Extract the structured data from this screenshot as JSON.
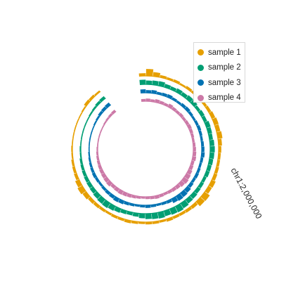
{
  "chart_data": {
    "type": "radial-track",
    "chromosome_label": "chr1:2,000,000",
    "tracks": [
      {
        "name": "sample 1",
        "color": "#E69F00",
        "values": [
          0.35,
          0.9,
          0.55,
          0.3,
          0.25,
          0.3,
          0.2,
          0.3,
          0.25,
          0.2,
          0.3,
          0.35,
          0.45,
          0.55,
          0.5,
          0.6,
          0.45,
          0.35,
          0.3,
          0.3,
          0.35,
          0.4,
          0.55,
          0.5,
          0.8,
          0.75,
          0.4,
          0.35,
          0.3,
          0.3,
          0.35,
          0.25,
          0.3,
          0.3,
          0.25,
          0.3,
          0.35,
          0.3,
          0.3,
          0.25,
          0.3,
          0.35,
          0.4,
          0.55,
          0.7,
          0.55,
          0.35,
          0.3,
          0.25,
          0.15,
          0.15,
          0.1,
          0.1,
          0.1,
          0.1,
          0.1,
          0.15,
          0.35,
          0.3,
          0.2
        ]
      },
      {
        "name": "sample 2",
        "color": "#009E73",
        "values": [
          0.6,
          0.5,
          0.55,
          0.6,
          0.45,
          0.4,
          0.5,
          0.45,
          0.55,
          0.5,
          0.35,
          0.45,
          0.4,
          0.55,
          0.5,
          0.45,
          0.55,
          0.6,
          0.55,
          0.5,
          0.45,
          0.45,
          0.35,
          0.4,
          0.45,
          0.55,
          0.6,
          0.75,
          0.85,
          0.8,
          0.7,
          0.8,
          0.75,
          0.7,
          0.6,
          0.45,
          0.4,
          0.45,
          0.55,
          0.65,
          0.75,
          0.7,
          0.6,
          0.5,
          0.45,
          0.4,
          0.35,
          0.3,
          0.25,
          0.15,
          0.15,
          0.1,
          0.1,
          0.1,
          0.1,
          0.1,
          0.15,
          0.2,
          0.3,
          0.35
        ]
      },
      {
        "name": "sample 3",
        "color": "#0072B2",
        "values": [
          0.45,
          0.35,
          0.4,
          0.3,
          0.35,
          0.4,
          0.3,
          0.25,
          0.35,
          0.4,
          0.3,
          0.25,
          0.3,
          0.35,
          0.3,
          0.25,
          0.3,
          0.35,
          0.4,
          0.3,
          0.25,
          0.3,
          0.35,
          0.3,
          0.4,
          0.55,
          0.65,
          0.7,
          0.6,
          0.35,
          0.3,
          0.25,
          0.3,
          0.35,
          0.3,
          0.25,
          0.3,
          0.35,
          0.45,
          0.5,
          0.4,
          0.35,
          0.3,
          0.25,
          0.3,
          0.35,
          0.3,
          0.25,
          0.2,
          0.15,
          0.1,
          0.1,
          0.1,
          0.1,
          0.1,
          0.15,
          0.2,
          0.3,
          0.35,
          0.4
        ]
      },
      {
        "name": "sample 4",
        "color": "#CC79A7",
        "values": [
          0.3,
          0.35,
          0.3,
          0.4,
          0.35,
          0.3,
          0.45,
          0.35,
          0.3,
          0.35,
          0.3,
          0.35,
          0.4,
          0.35,
          0.3,
          0.25,
          0.3,
          0.35,
          0.4,
          0.45,
          0.35,
          0.4,
          0.5,
          0.6,
          0.7,
          0.6,
          0.45,
          0.4,
          0.35,
          0.3,
          0.35,
          0.4,
          0.35,
          0.3,
          0.25,
          0.3,
          0.35,
          0.4,
          0.45,
          0.5,
          0.45,
          0.4,
          0.55,
          0.5,
          0.45,
          0.4,
          0.35,
          0.3,
          0.25,
          0.2,
          0.15,
          0.1,
          0.1,
          0.1,
          0.1,
          0.1,
          0.15,
          0.2,
          0.25,
          0.3
        ]
      }
    ]
  }
}
